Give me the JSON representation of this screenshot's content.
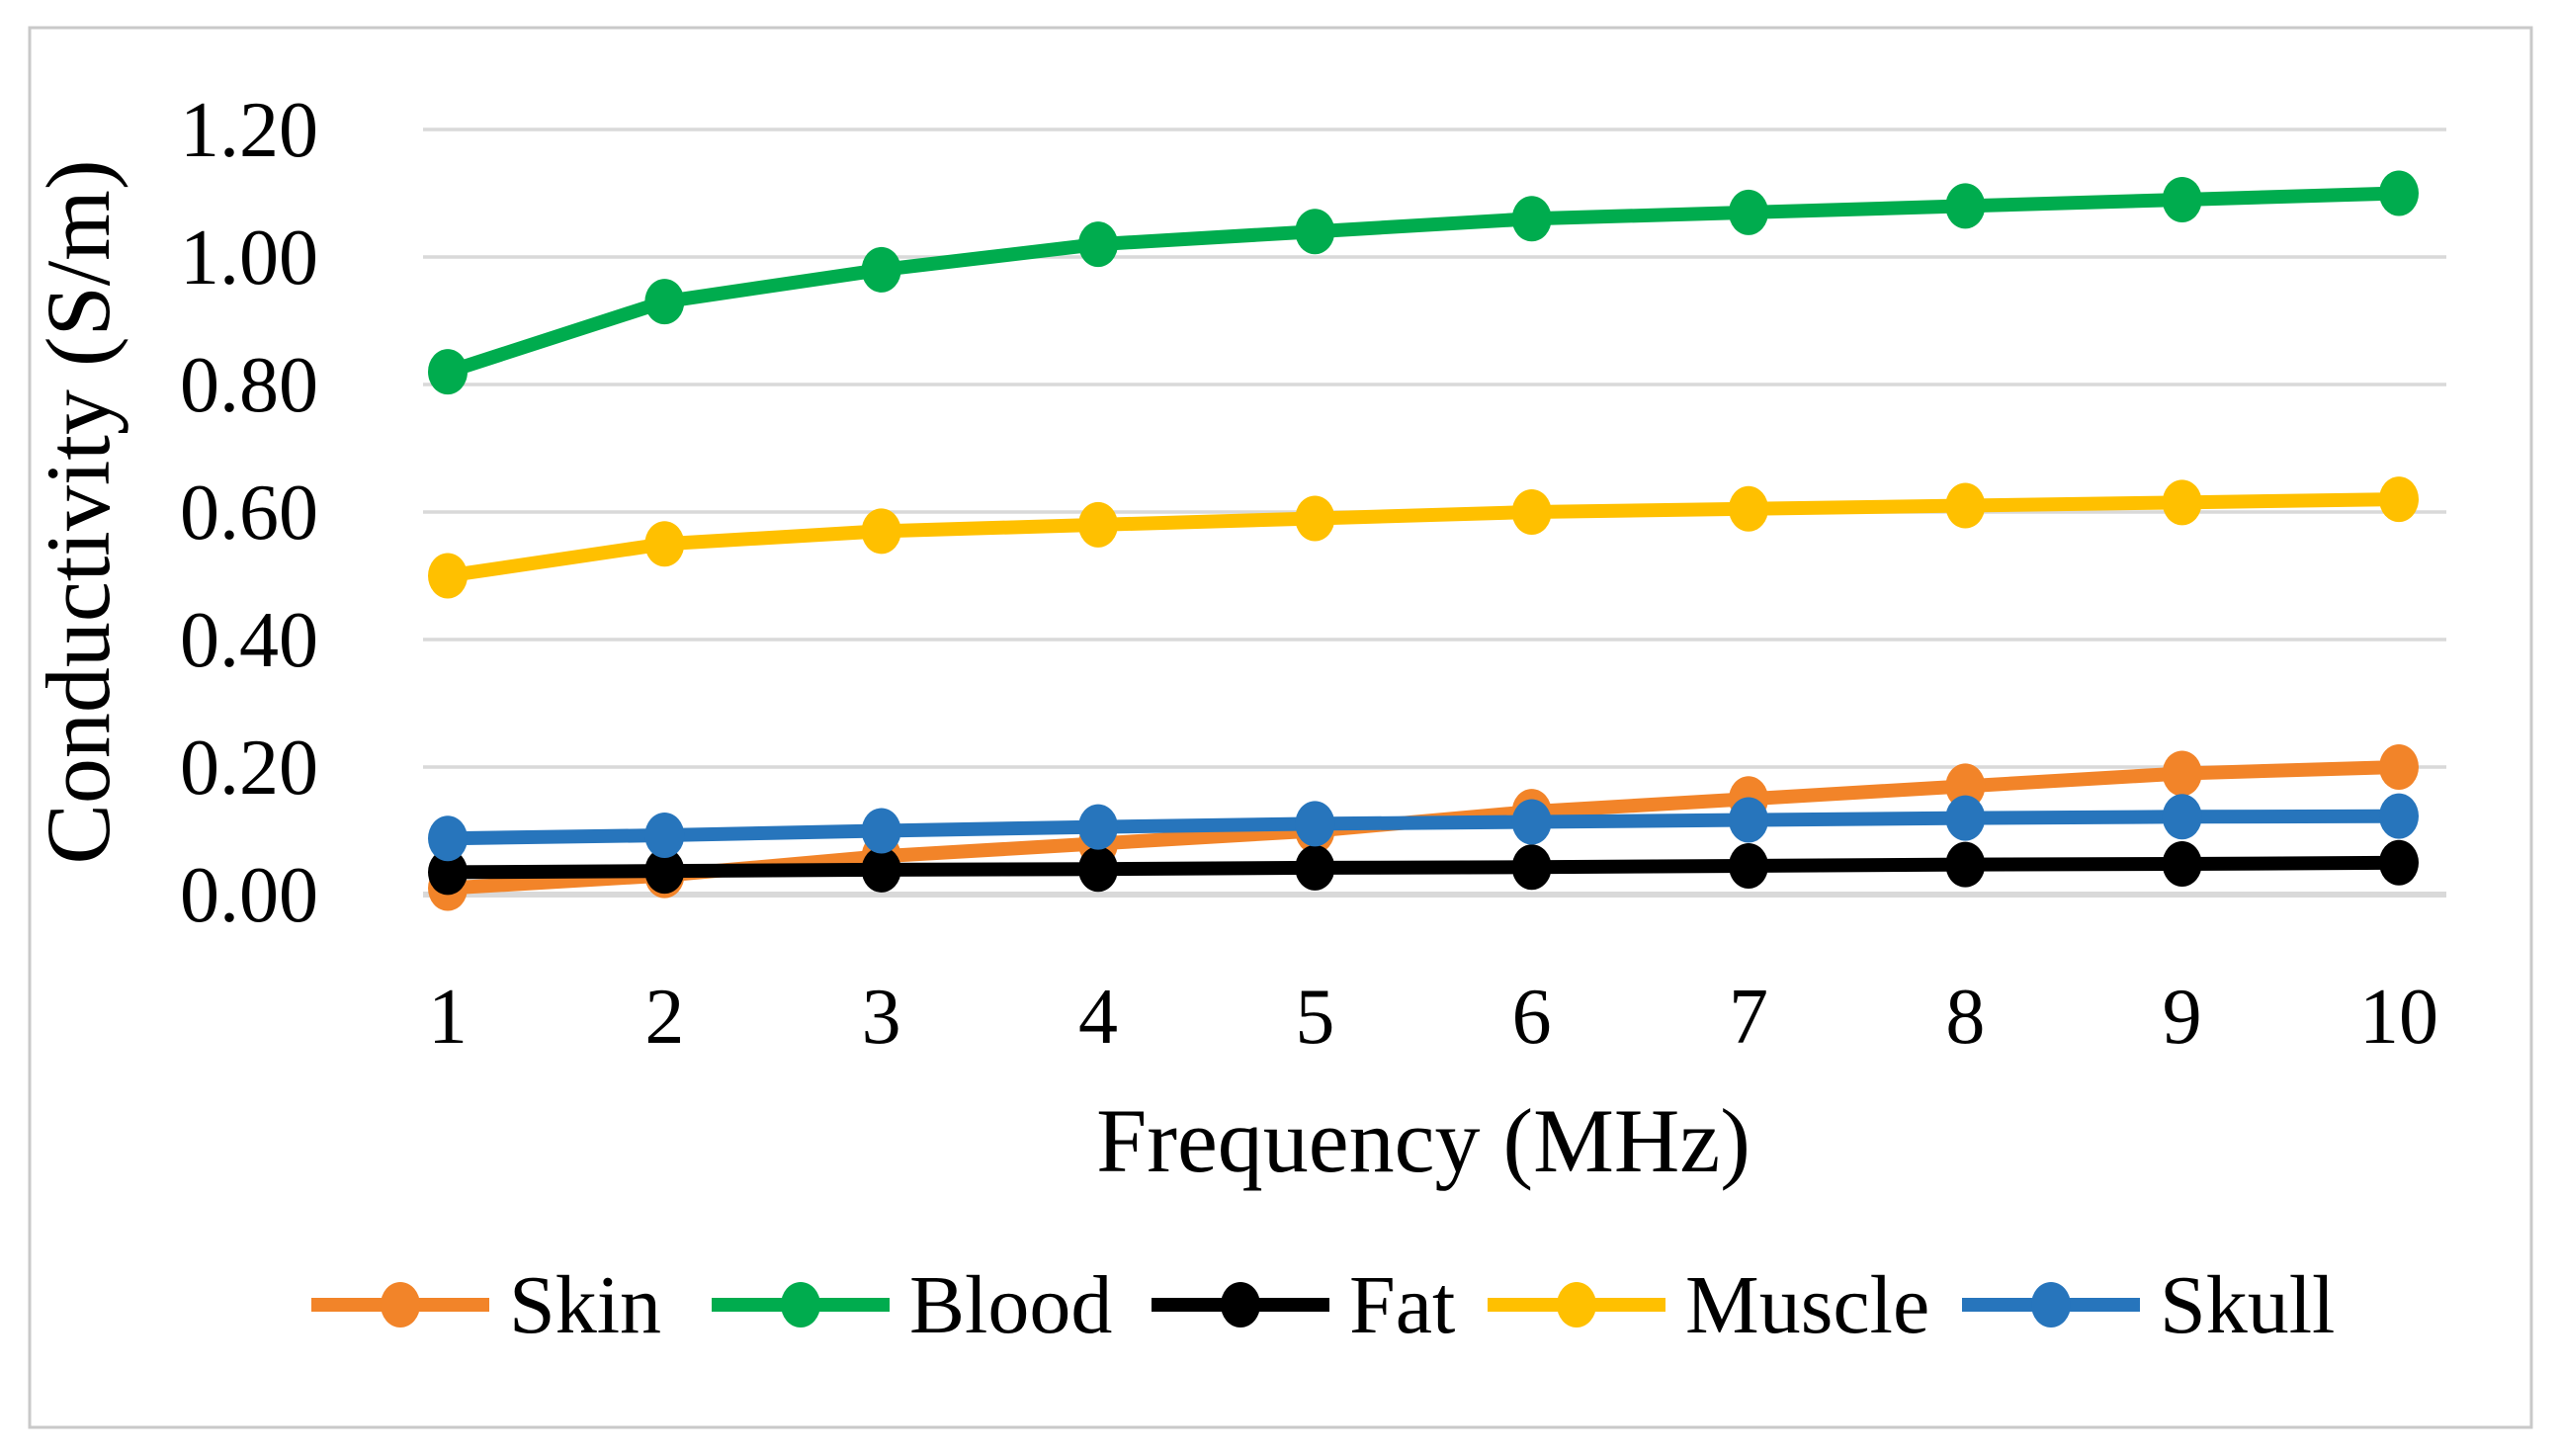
{
  "figure": {
    "background_color": "#FFFFFF",
    "border_color": "#C9C9C9"
  },
  "chart_data": {
    "type": "line",
    "title": "",
    "xlabel": "Frequency (MHz)",
    "ylabel": "Conductivity (S/m)",
    "x": [
      1,
      2,
      3,
      4,
      5,
      6,
      7,
      8,
      9,
      10
    ],
    "xlim": [
      1,
      10
    ],
    "ylim": [
      0,
      1.2
    ],
    "yticks": [
      "0.00",
      "0.20",
      "0.40",
      "0.60",
      "0.80",
      "1.00",
      "1.20"
    ],
    "ytick_values": [
      0,
      0.2,
      0.4,
      0.6,
      0.8,
      1.0,
      1.2
    ],
    "grid": "horizontal-only",
    "gridline_color": "#D9D9D9",
    "legend_position": "bottom",
    "marker_style": "filled-circle",
    "series": [
      {
        "name": "Skin",
        "color": "#F28429",
        "values": [
          0.01,
          0.03,
          0.06,
          0.08,
          0.1,
          0.13,
          0.15,
          0.17,
          0.19,
          0.2
        ]
      },
      {
        "name": "Blood",
        "color": "#00AC4E",
        "values": [
          0.82,
          0.93,
          0.98,
          1.02,
          1.04,
          1.06,
          1.07,
          1.08,
          1.09,
          1.1
        ]
      },
      {
        "name": "Fat",
        "color": "#000000",
        "values": [
          0.035,
          0.037,
          0.039,
          0.04,
          0.042,
          0.043,
          0.045,
          0.047,
          0.048,
          0.05
        ]
      },
      {
        "name": "Muscle",
        "color": "#FFC000",
        "values": [
          0.5,
          0.55,
          0.57,
          0.58,
          0.59,
          0.6,
          0.605,
          0.61,
          0.615,
          0.62
        ]
      },
      {
        "name": "Skull",
        "color": "#2775BC",
        "values": [
          0.088,
          0.093,
          0.1,
          0.106,
          0.111,
          0.114,
          0.117,
          0.12,
          0.122,
          0.123
        ]
      }
    ]
  }
}
